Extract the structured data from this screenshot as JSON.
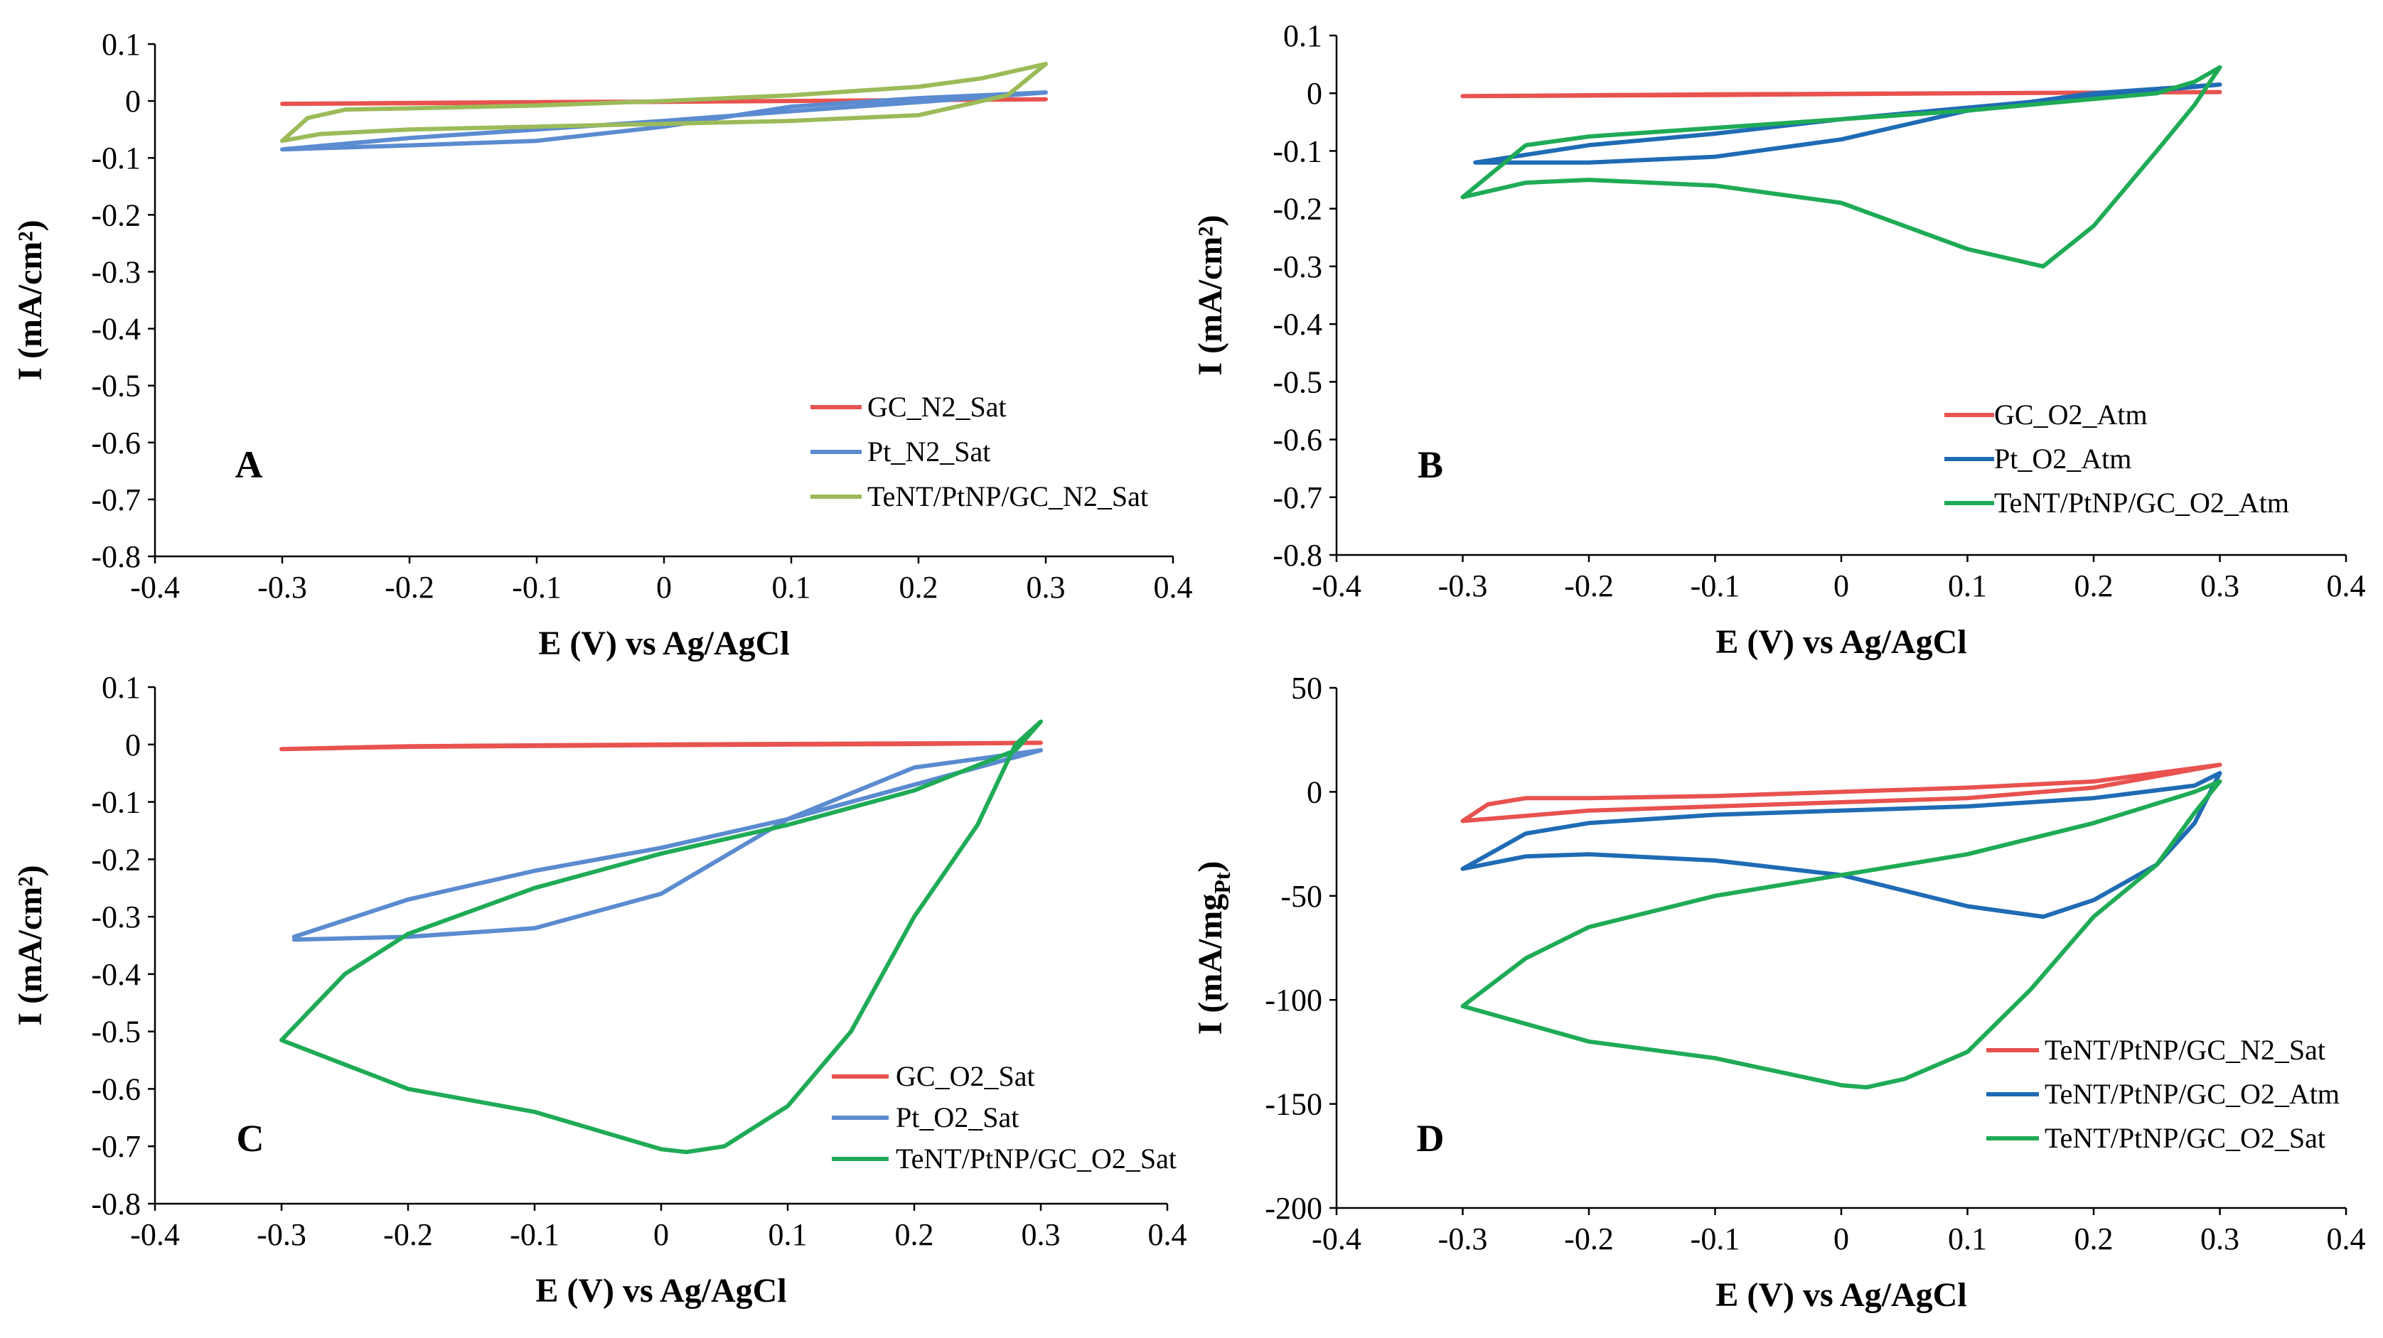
{
  "chart_data": [
    {
      "panel_label": "A",
      "type": "line",
      "title": "",
      "xlabel": "E (V) vs Ag/AgCl",
      "ylabel": "I (mA/cm²)",
      "xlim": [
        -0.4,
        0.4
      ],
      "ylim": [
        -0.8,
        0.1
      ],
      "xticks": [
        -0.4,
        -0.3,
        -0.2,
        -0.1,
        0,
        0.1,
        0.2,
        0.3,
        0.4
      ],
      "yticks": [
        0.1,
        0,
        -0.1,
        -0.2,
        -0.3,
        -0.4,
        -0.5,
        -0.6,
        -0.7,
        -0.8
      ],
      "legend_position": "lower-right",
      "series": [
        {
          "name": "GC_N2_Sat",
          "color": "#e8524f",
          "x": [
            -0.3,
            -0.1,
            0.1,
            0.3,
            0.1,
            -0.1,
            -0.3
          ],
          "y": [
            -0.005,
            -0.002,
            0.0,
            0.003,
            0.0,
            -0.003,
            -0.005
          ]
        },
        {
          "name": "Pt_N2_Sat",
          "color": "#5b8bd0",
          "x": [
            -0.3,
            -0.2,
            -0.1,
            0.0,
            0.1,
            0.2,
            0.3,
            0.2,
            0.1,
            0.0,
            -0.1,
            -0.2,
            -0.3
          ],
          "y": [
            -0.085,
            -0.065,
            -0.05,
            -0.035,
            -0.018,
            -0.002,
            0.015,
            0.005,
            -0.01,
            -0.045,
            -0.07,
            -0.078,
            -0.085
          ]
        },
        {
          "name": "TeNT/PtNP/GC_N2_Sat",
          "color": "#9bbb59",
          "x": [
            -0.3,
            -0.28,
            -0.25,
            -0.2,
            -0.1,
            0.0,
            0.1,
            0.2,
            0.25,
            0.3,
            0.27,
            0.2,
            0.1,
            0.0,
            -0.1,
            -0.2,
            -0.27,
            -0.3
          ],
          "y": [
            -0.07,
            -0.03,
            -0.015,
            -0.013,
            -0.008,
            0.0,
            0.01,
            0.025,
            0.04,
            0.065,
            0.01,
            -0.025,
            -0.035,
            -0.04,
            -0.045,
            -0.05,
            -0.058,
            -0.07
          ]
        }
      ]
    },
    {
      "panel_label": "B",
      "type": "line",
      "title": "",
      "xlabel": "E (V) vs Ag/AgCl",
      "ylabel": "I (mA/cm²)",
      "xlim": [
        -0.4,
        0.4
      ],
      "ylim": [
        -0.8,
        0.1
      ],
      "xticks": [
        -0.4,
        -0.3,
        -0.2,
        -0.1,
        0,
        0.1,
        0.2,
        0.3,
        0.4
      ],
      "yticks": [
        0.1,
        0,
        -0.1,
        -0.2,
        -0.3,
        -0.4,
        -0.5,
        -0.6,
        -0.7,
        -0.8
      ],
      "legend_position": "lower-right",
      "series": [
        {
          "name": "GC_O2_Atm",
          "color": "#e8524f",
          "x": [
            -0.3,
            -0.1,
            0.1,
            0.3,
            0.1,
            -0.1,
            -0.3
          ],
          "y": [
            -0.005,
            -0.002,
            0.0,
            0.002,
            0.0,
            -0.003,
            -0.005
          ]
        },
        {
          "name": "Pt_O2_Atm",
          "color": "#1f6bb5",
          "x": [
            -0.29,
            -0.2,
            -0.1,
            0.0,
            0.1,
            0.2,
            0.3,
            0.2,
            0.1,
            0.0,
            -0.1,
            -0.2,
            -0.29
          ],
          "y": [
            -0.12,
            -0.09,
            -0.07,
            -0.045,
            -0.025,
            -0.005,
            0.015,
            0.0,
            -0.03,
            -0.08,
            -0.11,
            -0.12,
            -0.12
          ]
        },
        {
          "name": "TeNT/PtNP/GC_O2_Atm",
          "color": "#1fab56",
          "x": [
            -0.3,
            -0.25,
            -0.2,
            -0.1,
            0.0,
            0.1,
            0.2,
            0.25,
            0.28,
            0.3,
            0.28,
            0.25,
            0.2,
            0.16,
            0.1,
            0.0,
            -0.1,
            -0.2,
            -0.25,
            -0.3
          ],
          "y": [
            -0.18,
            -0.09,
            -0.075,
            -0.06,
            -0.045,
            -0.03,
            -0.01,
            0.0,
            0.02,
            0.045,
            -0.02,
            -0.1,
            -0.23,
            -0.3,
            -0.27,
            -0.19,
            -0.16,
            -0.15,
            -0.155,
            -0.18
          ]
        }
      ]
    },
    {
      "panel_label": "C",
      "type": "line",
      "title": "",
      "xlabel": "E (V) vs Ag/AgCl",
      "ylabel": "I (mA/cm²)",
      "xlim": [
        -0.4,
        0.4
      ],
      "ylim": [
        -0.8,
        0.1
      ],
      "xticks": [
        -0.4,
        -0.3,
        -0.2,
        -0.1,
        0,
        0.1,
        0.2,
        0.3,
        0.4
      ],
      "yticks": [
        0.1,
        0,
        -0.1,
        -0.2,
        -0.3,
        -0.4,
        -0.5,
        -0.6,
        -0.7,
        -0.8
      ],
      "legend_position": "lower-right",
      "series": [
        {
          "name": "GC_O2_Sat",
          "color": "#e8524f",
          "x": [
            -0.3,
            -0.2,
            0.0,
            0.2,
            0.3,
            0.2,
            0.0,
            -0.2,
            -0.3
          ],
          "y": [
            -0.008,
            -0.003,
            0.0,
            0.002,
            0.003,
            0.001,
            -0.001,
            -0.004,
            -0.008
          ]
        },
        {
          "name": "Pt_O2_Sat",
          "color": "#5b8bd0",
          "x": [
            -0.29,
            -0.2,
            -0.1,
            0.0,
            0.1,
            0.2,
            0.3,
            0.2,
            0.1,
            0.0,
            -0.1,
            -0.2,
            -0.29
          ],
          "y": [
            -0.335,
            -0.27,
            -0.22,
            -0.18,
            -0.13,
            -0.07,
            -0.01,
            -0.04,
            -0.13,
            -0.26,
            -0.32,
            -0.335,
            -0.34
          ]
        },
        {
          "name": "TeNT/PtNP/GC_O2_Sat",
          "color": "#1fab56",
          "x": [
            -0.3,
            -0.25,
            -0.2,
            -0.1,
            0.0,
            0.1,
            0.2,
            0.28,
            0.3,
            0.28,
            0.25,
            0.2,
            0.15,
            0.1,
            0.05,
            0.02,
            0.0,
            -0.1,
            -0.2,
            -0.3
          ],
          "y": [
            -0.515,
            -0.4,
            -0.33,
            -0.25,
            -0.19,
            -0.14,
            -0.08,
            -0.01,
            0.04,
            0.0,
            -0.14,
            -0.3,
            -0.5,
            -0.63,
            -0.7,
            -0.71,
            -0.705,
            -0.64,
            -0.6,
            -0.515
          ]
        }
      ]
    },
    {
      "panel_label": "D",
      "type": "line",
      "title": "",
      "xlabel": "E (V) vs Ag/AgCl",
      "ylabel": "I (mA/mg",
      "ylabel_sub": "Pt",
      "ylabel_end": ")",
      "xlim": [
        -0.4,
        0.4
      ],
      "ylim": [
        -200,
        50
      ],
      "xticks": [
        -0.4,
        -0.3,
        -0.2,
        -0.1,
        0,
        0.1,
        0.2,
        0.3,
        0.4
      ],
      "yticks": [
        50,
        0,
        -50,
        -100,
        -150,
        -200
      ],
      "legend_position": "lower-right",
      "series": [
        {
          "name": "TeNT/PtNP/GC_N2_Sat",
          "color": "#e8524f",
          "x": [
            -0.3,
            -0.28,
            -0.25,
            -0.2,
            -0.1,
            0.0,
            0.1,
            0.2,
            0.3,
            0.2,
            0.1,
            0.0,
            -0.1,
            -0.2,
            -0.3
          ],
          "y": [
            -14,
            -6,
            -3,
            -3,
            -2,
            0,
            2,
            5,
            13,
            2,
            -3,
            -5,
            -7,
            -9,
            -14
          ]
        },
        {
          "name": "TeNT/PtNP/GC_O2_Atm",
          "color": "#1f6bb5",
          "x": [
            -0.3,
            -0.25,
            -0.2,
            -0.1,
            0.0,
            0.1,
            0.2,
            0.28,
            0.3,
            0.28,
            0.25,
            0.2,
            0.16,
            0.1,
            0.0,
            -0.1,
            -0.2,
            -0.25,
            -0.3
          ],
          "y": [
            -37,
            -20,
            -15,
            -11,
            -9,
            -7,
            -3,
            3,
            9,
            -15,
            -35,
            -52,
            -60,
            -55,
            -40,
            -33,
            -30,
            -31,
            -37
          ]
        },
        {
          "name": "TeNT/PtNP/GC_O2_Sat",
          "color": "#1fab56",
          "x": [
            -0.3,
            -0.25,
            -0.2,
            -0.1,
            0.0,
            0.1,
            0.2,
            0.28,
            0.3,
            0.28,
            0.25,
            0.2,
            0.15,
            0.1,
            0.05,
            0.02,
            0.0,
            -0.1,
            -0.2,
            -0.3
          ],
          "y": [
            -103,
            -80,
            -65,
            -50,
            -40,
            -30,
            -15,
            0,
            5,
            -10,
            -35,
            -60,
            -95,
            -125,
            -138,
            -142,
            -141,
            -128,
            -120,
            -103
          ]
        }
      ]
    }
  ]
}
